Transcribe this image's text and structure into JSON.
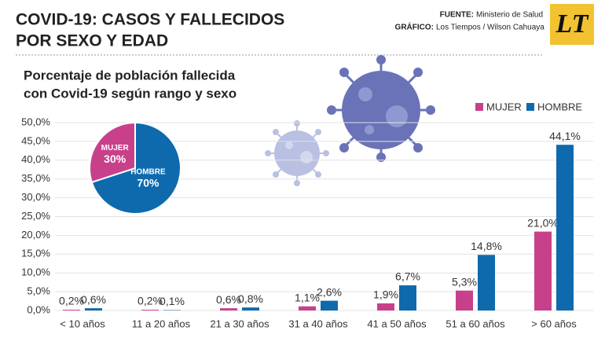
{
  "header": {
    "title": [
      "COVID-19: CASOS Y FALLECIDOS",
      "POR SEXO Y EDAD"
    ],
    "source_label": "FUENTE:",
    "source": "Ministerio de Salud",
    "graphic_label": "GRÁFICO:",
    "graphic": "Los Tiempos / Wilson Cahuaya",
    "logo": "LT"
  },
  "chart_data": [
    {
      "type": "bar",
      "title": [
        "Porcentaje de población fallecida",
        "con Covid-19 según rango y sexo"
      ],
      "categories": [
        "< 10 años",
        "11 a 20 años",
        "21 a 30 años",
        "31 a 40 años",
        "41 a 50 años",
        "51 a 60 años",
        "> 60 años"
      ],
      "series": [
        {
          "name": "MUJER",
          "color": "#c9408a",
          "values": [
            0.2,
            0.2,
            0.6,
            1.1,
            1.9,
            5.3,
            21.0
          ],
          "value_labels": [
            "0,2%",
            "0,2%",
            "0,6%",
            "1,1%",
            "1,9%",
            "5,3%",
            "21,0%"
          ]
        },
        {
          "name": "HOMBRE",
          "color": "#0e6aad",
          "values": [
            0.6,
            0.1,
            0.8,
            2.6,
            6.7,
            14.8,
            44.1
          ],
          "value_labels": [
            "0,6%",
            "0,1%",
            "0,8%",
            "2,6%",
            "6,7%",
            "14,8%",
            "44,1%"
          ]
        }
      ],
      "ylim": [
        0,
        50
      ],
      "yticks": [
        {
          "value": 0,
          "label": "0,0%"
        },
        {
          "value": 5,
          "label": "5,0%"
        },
        {
          "value": 10,
          "label": "10,0%"
        },
        {
          "value": 15,
          "label": "15,0%"
        },
        {
          "value": 20,
          "label": "20,0%"
        },
        {
          "value": 25,
          "label": "25,0%"
        },
        {
          "value": 30,
          "label": "30,0%"
        },
        {
          "value": 35,
          "label": "35,0%"
        },
        {
          "value": 40,
          "label": "40,0%"
        },
        {
          "value": 45,
          "label": "45,0%"
        },
        {
          "value": 50,
          "label": "50,0%"
        }
      ],
      "grid": true,
      "legend": "top-right"
    },
    {
      "type": "pie",
      "labels": [
        "MUJER",
        "HOMBRE"
      ],
      "values": [
        30,
        70
      ],
      "value_labels": [
        "30%",
        "70%"
      ],
      "colors": [
        "#c9408a",
        "#0e6aad"
      ]
    }
  ]
}
